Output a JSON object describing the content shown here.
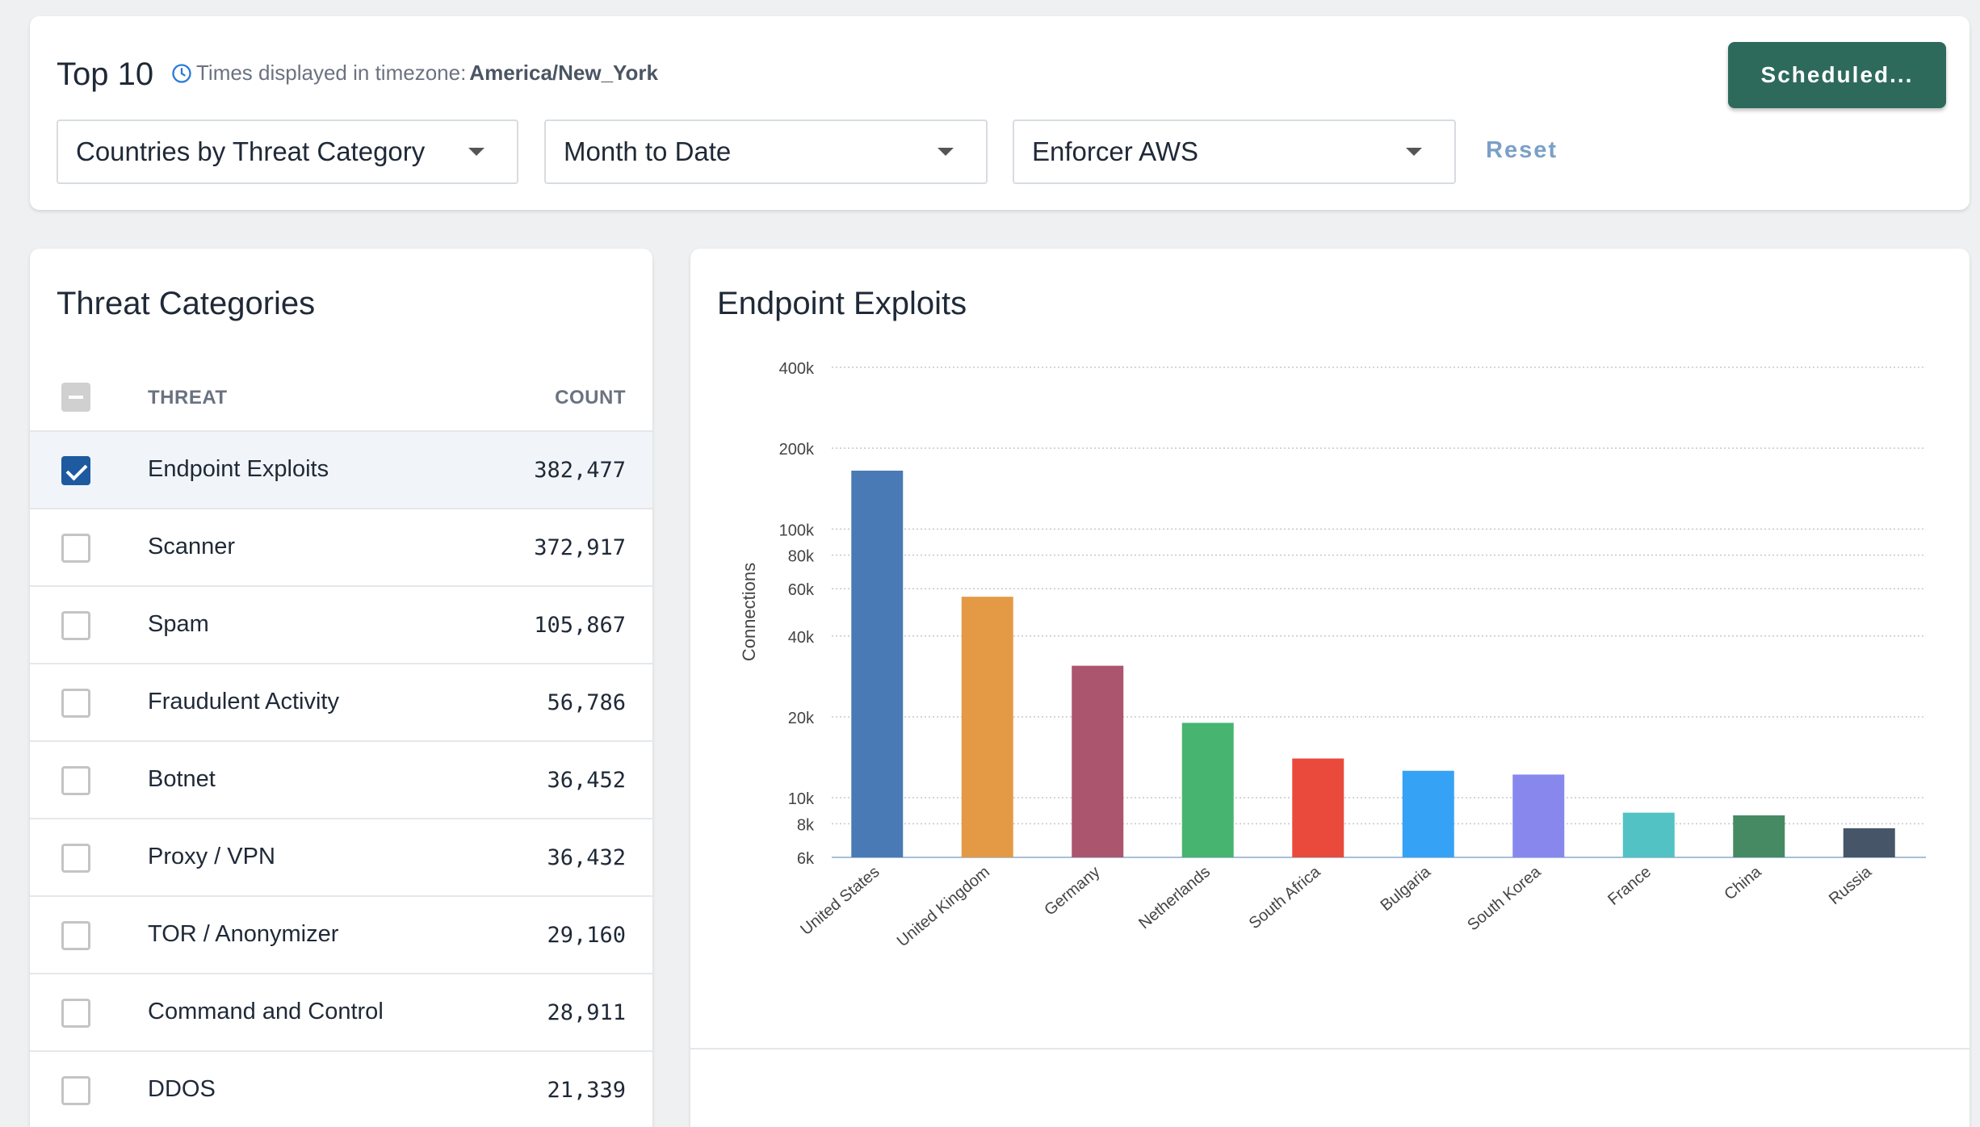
{
  "header": {
    "title": "Top 10",
    "tz_prefix": "Times displayed in timezone: ",
    "tz_value": "America/New_York",
    "scheduled_label": "Scheduled...",
    "reset_label": "Reset",
    "report_selected": "Countries by Threat Category",
    "range_selected": "Month to Date",
    "enforcer_selected": "Enforcer AWS"
  },
  "threats": {
    "title": "Threat Categories",
    "col_threat": "THREAT",
    "col_count": "COUNT",
    "rows": [
      {
        "name": "Endpoint Exploits",
        "count": "382,477",
        "checked": true
      },
      {
        "name": "Scanner",
        "count": "372,917",
        "checked": false
      },
      {
        "name": "Spam",
        "count": "105,867",
        "checked": false
      },
      {
        "name": "Fraudulent Activity",
        "count": "56,786",
        "checked": false
      },
      {
        "name": "Botnet",
        "count": "36,452",
        "checked": false
      },
      {
        "name": "Proxy / VPN",
        "count": "36,432",
        "checked": false
      },
      {
        "name": "TOR / Anonymizer",
        "count": "29,160",
        "checked": false
      },
      {
        "name": "Command and Control",
        "count": "28,911",
        "checked": false
      },
      {
        "name": "DDOS",
        "count": "21,339",
        "checked": false
      }
    ]
  },
  "chart_data": {
    "type": "bar",
    "title": "Endpoint Exploits",
    "xlabel": "",
    "ylabel": "Connections",
    "yscale": "log",
    "ylim": [
      6000,
      400000
    ],
    "yticks": [
      6000,
      8000,
      10000,
      20000,
      40000,
      60000,
      80000,
      100000,
      200000,
      400000
    ],
    "yticklabels": [
      "6k",
      "8k",
      "10k",
      "20k",
      "40k",
      "60k",
      "80k",
      "100k",
      "200k",
      "400k"
    ],
    "grid": true,
    "legend": "none",
    "categories": [
      "United States",
      "United Kingdom",
      "Germany",
      "Netherlands",
      "South Africa",
      "Bulgaria",
      "South Korea",
      "France",
      "China",
      "Russia"
    ],
    "values": [
      165000,
      56000,
      31000,
      19000,
      14000,
      12600,
      12200,
      8800,
      8600,
      7700
    ],
    "colors": [
      "#4a7ab5",
      "#e49a45",
      "#ac556e",
      "#47b56f",
      "#ea4a3b",
      "#36a2f5",
      "#8787ee",
      "#52c2c5",
      "#468a63",
      "#475569"
    ]
  }
}
